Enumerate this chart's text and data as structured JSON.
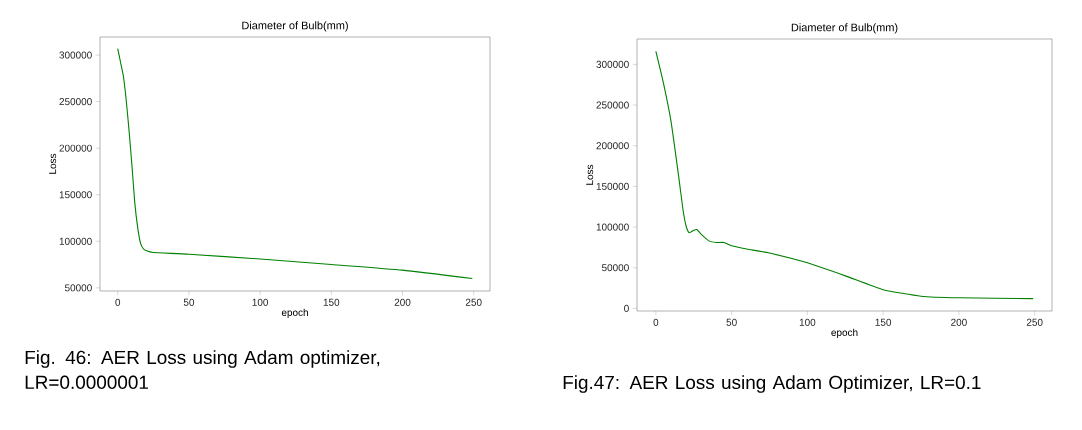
{
  "chart_data": [
    {
      "type": "line",
      "title": "Diameter of Bulb(mm)",
      "xlabel": "epoch",
      "ylabel": "Loss",
      "x": [
        0,
        2,
        4,
        6,
        8,
        10,
        12,
        14,
        16,
        18,
        20,
        25,
        50,
        100,
        150,
        200,
        249
      ],
      "series": [
        {
          "color": "#008000",
          "values": [
            307000,
            292000,
            277000,
            251000,
            218000,
            181000,
            141000,
            115000,
            98000,
            92000,
            90000,
            88000,
            86000,
            81000,
            75000,
            69000,
            60000
          ]
        }
      ],
      "xlim": [
        -12.45,
        261.45
      ],
      "ylim": [
        46600,
        319400
      ],
      "xticks": [
        0,
        50,
        100,
        150,
        200,
        250
      ],
      "yticks": [
        50000,
        100000,
        150000,
        200000,
        250000,
        300000
      ],
      "annotations": [
        "Fig. 46: AER Loss using Adam optimizer, LR=0.0000001"
      ]
    },
    {
      "type": "line",
      "title": "Diameter of Bulb(mm)",
      "xlabel": "epoch",
      "ylabel": "Loss",
      "x": [
        0,
        5,
        10,
        15,
        18,
        20,
        22,
        25,
        27,
        30,
        35,
        40,
        45,
        50,
        60,
        75,
        100,
        125,
        150,
        175,
        200,
        249
      ],
      "series": [
        {
          "color": "#008000",
          "values": [
            316000,
            277000,
            230000,
            163000,
            120000,
            101000,
            93000,
            96000,
            97000,
            91000,
            83000,
            81000,
            81000,
            77000,
            73000,
            68000,
            56000,
            40000,
            23000,
            15000,
            13000,
            12000
          ]
        }
      ],
      "xlim": [
        -12.45,
        261.45
      ],
      "ylim": [
        -3200,
        331200
      ],
      "xticks": [
        0,
        50,
        100,
        150,
        200,
        250
      ],
      "yticks": [
        0,
        50000,
        100000,
        150000,
        200000,
        250000,
        300000
      ],
      "annotations": [
        "Fig.47: AER Loss using Adam Optimizer, LR=0.1"
      ]
    }
  ]
}
